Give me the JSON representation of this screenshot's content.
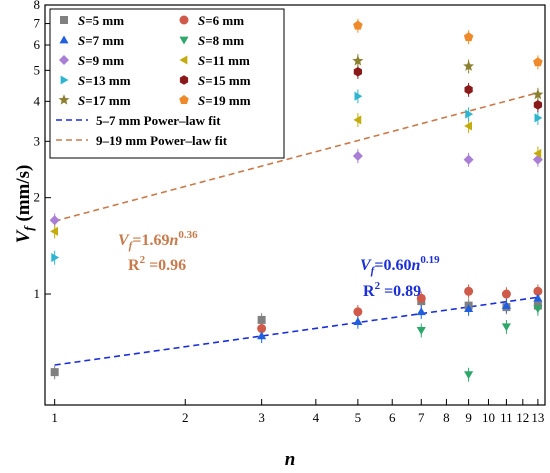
{
  "chart_data": {
    "type": "scatter",
    "xlabel": "n",
    "ylabel_main": "V",
    "ylabel_sub": "f",
    "ylabel_unit": " (mm/s)",
    "x_scale": "log",
    "y_scale": "log",
    "xlim": [
      0.95,
      13.5
    ],
    "ylim": [
      0.45,
      8
    ],
    "x_ticks": [
      1,
      2,
      3,
      4,
      5,
      6,
      7,
      8,
      9,
      10,
      11,
      12,
      13
    ],
    "x_tick_labels": [
      "1",
      "2",
      "3",
      "4",
      "5",
      "6",
      "7",
      "8",
      "9",
      "10",
      "11",
      "12",
      "13"
    ],
    "y_ticks": [
      1,
      2,
      3,
      4,
      5,
      6,
      7,
      8
    ],
    "y_tick_labels": [
      "1",
      "2",
      "3",
      "4",
      "5",
      "6",
      "7",
      "8"
    ],
    "legend_position": "top-left",
    "series": [
      {
        "name": "S=5 mm",
        "prefix": "S",
        "suffix": "=5 mm",
        "marker": "square",
        "color": "#808080",
        "points": [
          {
            "x": 1,
            "y": 0.57
          },
          {
            "x": 3,
            "y": 0.83
          },
          {
            "x": 7,
            "y": 0.95
          },
          {
            "x": 9,
            "y": 0.92
          },
          {
            "x": 11,
            "y": 0.91
          },
          {
            "x": 13,
            "y": 0.92
          }
        ]
      },
      {
        "name": "S=6 mm",
        "prefix": "S",
        "suffix": "=6 mm",
        "marker": "circle",
        "color": "#cf5a4a",
        "points": [
          {
            "x": 3,
            "y": 0.78
          },
          {
            "x": 5,
            "y": 0.88
          },
          {
            "x": 7,
            "y": 0.97
          },
          {
            "x": 9,
            "y": 1.02
          },
          {
            "x": 11,
            "y": 1.0
          },
          {
            "x": 13,
            "y": 1.02
          }
        ]
      },
      {
        "name": "S=7 mm",
        "prefix": "S",
        "suffix": "=7 mm",
        "marker": "triangle-up",
        "color": "#1f5fe0",
        "points": [
          {
            "x": 3,
            "y": 0.74
          },
          {
            "x": 5,
            "y": 0.82
          },
          {
            "x": 7,
            "y": 0.88
          },
          {
            "x": 9,
            "y": 0.9
          },
          {
            "x": 11,
            "y": 0.92
          },
          {
            "x": 13,
            "y": 0.97
          }
        ]
      },
      {
        "name": "S=8 mm",
        "prefix": "S",
        "suffix": "=8 mm",
        "marker": "triangle-down",
        "color": "#2ea86a",
        "points": [
          {
            "x": 7,
            "y": 0.77
          },
          {
            "x": 9,
            "y": 0.56
          },
          {
            "x": 11,
            "y": 0.79
          },
          {
            "x": 13,
            "y": 0.9
          }
        ]
      },
      {
        "name": "S=9 mm",
        "prefix": "S",
        "suffix": "=9 mm",
        "marker": "diamond",
        "color": "#a97fd6",
        "points": [
          {
            "x": 1,
            "y": 1.7
          },
          {
            "x": 5,
            "y": 2.7
          },
          {
            "x": 9,
            "y": 2.63
          },
          {
            "x": 13,
            "y": 2.63
          }
        ]
      },
      {
        "name": "S=11 mm",
        "prefix": "S",
        "suffix": "=11 mm",
        "marker": "triangle-left",
        "color": "#c3ad0c",
        "points": [
          {
            "x": 1,
            "y": 1.57
          },
          {
            "x": 5,
            "y": 3.5
          },
          {
            "x": 9,
            "y": 3.35
          },
          {
            "x": 13,
            "y": 2.75
          }
        ]
      },
      {
        "name": "S=13 mm",
        "prefix": "S",
        "suffix": "=13 mm",
        "marker": "triangle-right",
        "color": "#2fb5cf",
        "points": [
          {
            "x": 1,
            "y": 1.3
          },
          {
            "x": 5,
            "y": 4.15
          },
          {
            "x": 9,
            "y": 3.65
          },
          {
            "x": 13,
            "y": 3.55
          }
        ]
      },
      {
        "name": "S=15 mm",
        "prefix": "S",
        "suffix": "=15 mm",
        "marker": "hexagon",
        "color": "#8a1a1a",
        "points": [
          {
            "x": 5,
            "y": 4.95
          },
          {
            "x": 9,
            "y": 4.35
          },
          {
            "x": 13,
            "y": 3.9
          }
        ]
      },
      {
        "name": "S=17 mm",
        "prefix": "S",
        "suffix": "=17 mm",
        "marker": "star",
        "color": "#8c8030",
        "points": [
          {
            "x": 5,
            "y": 5.35
          },
          {
            "x": 9,
            "y": 5.15
          },
          {
            "x": 13,
            "y": 4.2
          }
        ]
      },
      {
        "name": "S=19 mm",
        "prefix": "S",
        "suffix": "=19 mm",
        "marker": "pentagon",
        "color": "#ef8a2a",
        "points": [
          {
            "x": 5,
            "y": 6.9
          },
          {
            "x": 9,
            "y": 6.35
          },
          {
            "x": 13,
            "y": 5.3
          }
        ]
      }
    ],
    "fits": [
      {
        "name": "5–7 mm Power–law fit",
        "color": "#1a2fd8",
        "a": 0.6,
        "b": 0.19,
        "x_range": [
          1,
          13
        ]
      },
      {
        "name": "9–19 mm Power–law fit",
        "color": "#c87a4a",
        "a": 1.69,
        "b": 0.36,
        "x_range": [
          1,
          13
        ]
      }
    ],
    "annotations": [
      {
        "var": "V",
        "sub": "f",
        "equation": "=1.69",
        "power_base": "n",
        "exponent": "0.36",
        "r2_label": "R",
        "r2_sup": "2",
        "r2_value": " =0.96",
        "color": "#c87a4a"
      },
      {
        "var": "V",
        "sub": "f",
        "equation": "=0.60",
        "power_base": "n",
        "exponent": "0.19",
        "r2_label": "R",
        "r2_sup": "2",
        "r2_value": " =0.89",
        "color": "#1a2fd8"
      }
    ]
  }
}
